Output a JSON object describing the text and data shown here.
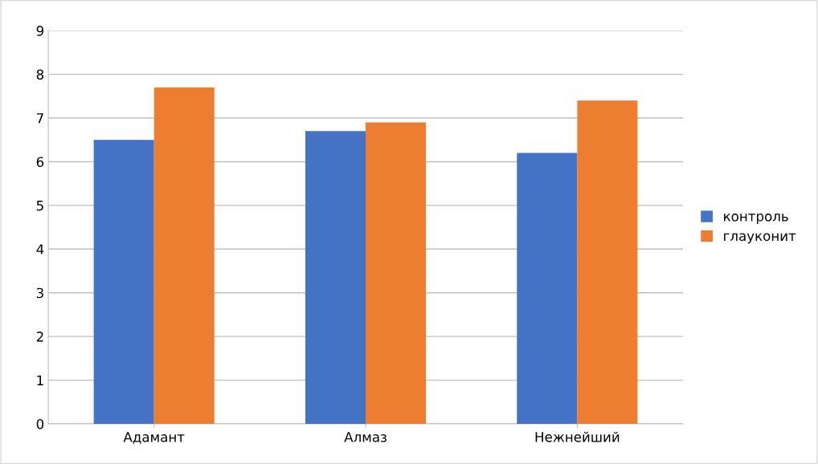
{
  "chart_data": {
    "type": "bar",
    "categories": [
      "Адамант",
      "Алмаз",
      "Нежнейший"
    ],
    "series": [
      {
        "name": "контроль",
        "color": "#4472c4",
        "values": [
          6.5,
          6.7,
          6.2
        ]
      },
      {
        "name": "глауконит",
        "color": "#ed7d31",
        "values": [
          7.7,
          6.9,
          7.4
        ]
      }
    ],
    "ylim": [
      0,
      9
    ],
    "yticks": [
      0,
      1,
      2,
      3,
      4,
      5,
      6,
      7,
      8,
      9
    ],
    "grid": "y",
    "legend": "right"
  }
}
